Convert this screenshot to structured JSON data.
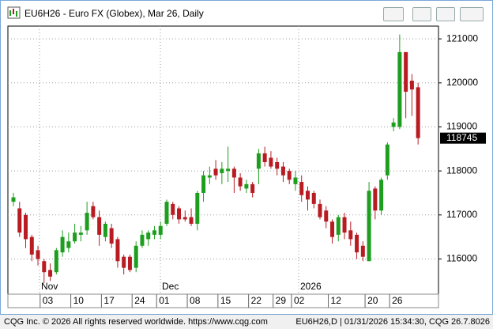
{
  "window": {
    "title": "EU6H26 - Euro FX (Globex), Mar 26, Daily"
  },
  "footer": {
    "left": "CQG Inc. © 2026 All rights reserved worldwide. https://www.cqg.com",
    "right": "EU6H26,D | 01/31/2026 15:34:30, CQG 26.7.8026"
  },
  "chart_data": {
    "type": "candlestick",
    "month_labels": [
      "Nov",
      "Dec",
      "2026"
    ],
    "categories": [
      null,
      null,
      null,
      null,
      null,
      "03",
      null,
      null,
      null,
      null,
      "10",
      null,
      null,
      null,
      null,
      "17",
      null,
      null,
      null,
      null,
      "24",
      null,
      null,
      null,
      "01",
      null,
      null,
      null,
      null,
      "08",
      null,
      null,
      null,
      null,
      "15",
      null,
      null,
      null,
      null,
      "22",
      null,
      null,
      null,
      "29",
      null,
      null,
      "02",
      null,
      null,
      null,
      null,
      null,
      "12",
      null,
      null,
      null,
      null,
      null,
      "20",
      null,
      null,
      null,
      "26",
      null,
      null,
      null,
      null
    ],
    "open": [
      117300,
      117150,
      117000,
      116500,
      116200,
      115950,
      115750,
      115700,
      116150,
      116250,
      116400,
      116550,
      116650,
      117200,
      116950,
      116500,
      116700,
      116450,
      116050,
      116050,
      115800,
      116300,
      116450,
      116550,
      116550,
      116800,
      117250,
      117150,
      116950,
      116950,
      116800,
      117500,
      117850,
      118050,
      117950,
      118000,
      118050,
      117850,
      117600,
      117700,
      118050,
      118400,
      118300,
      118200,
      118100,
      118000,
      117700,
      117750,
      117550,
      117500,
      117250,
      117100,
      116850,
      116550,
      116950,
      116650,
      116550,
      116300,
      115950,
      117600,
      117100,
      117900,
      119000,
      119000,
      120700,
      120050,
      119900
    ],
    "high": [
      117500,
      117300,
      117050,
      116550,
      116300,
      116000,
      115900,
      116250,
      116650,
      116600,
      116800,
      116750,
      117300,
      117300,
      117100,
      116850,
      116800,
      116500,
      116100,
      116100,
      116400,
      116650,
      116650,
      116750,
      116850,
      117350,
      117300,
      117200,
      117100,
      117150,
      117550,
      118000,
      118100,
      118250,
      118200,
      118550,
      118100,
      117950,
      117800,
      117750,
      118500,
      118550,
      118450,
      118300,
      118200,
      118050,
      118000,
      117900,
      117650,
      117550,
      117350,
      117200,
      116900,
      117000,
      117050,
      116850,
      116600,
      116400,
      117750,
      117650,
      117850,
      118650,
      119200,
      121100,
      120700,
      120200,
      120000
    ],
    "low": [
      117200,
      116500,
      116250,
      115950,
      115850,
      115450,
      115500,
      115650,
      116050,
      116150,
      116350,
      116400,
      116550,
      116900,
      116300,
      116400,
      116250,
      115800,
      115650,
      115700,
      115700,
      116250,
      116300,
      116450,
      116450,
      116750,
      116900,
      116800,
      116850,
      116750,
      116650,
      117300,
      117700,
      117800,
      117700,
      117750,
      117500,
      117550,
      117500,
      117400,
      117700,
      118100,
      118050,
      117900,
      117750,
      117700,
      117550,
      117300,
      117100,
      117150,
      116900,
      116700,
      116350,
      116400,
      116450,
      116300,
      116000,
      115950,
      115950,
      116900,
      117000,
      117800,
      118900,
      118950,
      119200,
      119250,
      118600
    ],
    "close": [
      117400,
      116600,
      116450,
      116100,
      116000,
      115700,
      115600,
      116200,
      116500,
      116400,
      116600,
      116600,
      117050,
      116950,
      116550,
      116800,
      116350,
      115950,
      115800,
      115750,
      116300,
      116550,
      116600,
      116650,
      116750,
      117300,
      117000,
      116900,
      116900,
      116800,
      117500,
      117900,
      117900,
      117900,
      118050,
      118050,
      117850,
      117650,
      117700,
      117500,
      118400,
      118200,
      118100,
      118050,
      117900,
      117800,
      117850,
      117450,
      117350,
      117250,
      116950,
      116850,
      116500,
      116950,
      116600,
      116450,
      116150,
      116050,
      117550,
      117100,
      117800,
      118600,
      119100,
      120700,
      119800,
      119850,
      118745
    ],
    "up_color": "#1e9e1e",
    "down_color": "#b81c22",
    "ylim": [
      115200,
      121290
    ],
    "yticks": [
      116000,
      117000,
      118000,
      119000,
      120000,
      121000
    ],
    "grid": true
  }
}
